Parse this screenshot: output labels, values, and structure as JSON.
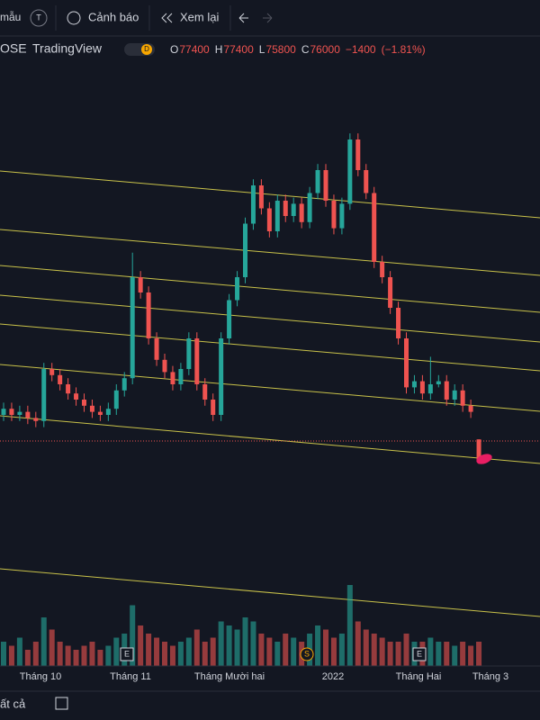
{
  "toolbar": {
    "templates": "mẫu",
    "avatar": "T",
    "alerts": "Cảnh báo",
    "replay": "Xem lại"
  },
  "legend": {
    "exchange": "OSE",
    "source": "TradingView",
    "interval": "D",
    "open_label": "O",
    "open": 77400,
    "high_label": "H",
    "high": 77400,
    "low_label": "L",
    "low": 75800,
    "close_label": "C",
    "close": 76000,
    "change": {
      "value": -1400,
      "label": "−1400"
    },
    "change_pct": {
      "value": -1.81,
      "label": "(−1.81%)"
    }
  },
  "chart_data": {
    "type": "candlestick",
    "up_color": "#26a69a",
    "down_color": "#ef5350",
    "ohlc": [
      [
        79000,
        79800,
        78600,
        79400
      ],
      [
        79400,
        79800,
        78600,
        79000
      ],
      [
        79000,
        79600,
        78600,
        79200
      ],
      [
        79200,
        79600,
        78400,
        78800
      ],
      [
        78800,
        79200,
        78200,
        78600
      ],
      [
        78600,
        82400,
        78200,
        82000
      ],
      [
        82000,
        82400,
        81200,
        81600
      ],
      [
        81600,
        82000,
        80600,
        81000
      ],
      [
        81000,
        81400,
        80000,
        80400
      ],
      [
        80400,
        80800,
        79600,
        80000
      ],
      [
        80000,
        80400,
        79200,
        79600
      ],
      [
        79600,
        80000,
        78800,
        79200
      ],
      [
        79200,
        79600,
        78600,
        79000
      ],
      [
        79000,
        79800,
        78600,
        79400
      ],
      [
        79400,
        81000,
        79000,
        80600
      ],
      [
        80600,
        81800,
        80200,
        81400
      ],
      [
        81400,
        89600,
        81000,
        88000
      ],
      [
        88000,
        88400,
        86600,
        87000
      ],
      [
        87000,
        87400,
        83600,
        84000
      ],
      [
        84000,
        84400,
        82200,
        82600
      ],
      [
        82600,
        83000,
        81400,
        81800
      ],
      [
        81800,
        82200,
        80600,
        81000
      ],
      [
        81000,
        82400,
        80600,
        82000
      ],
      [
        82000,
        84400,
        81600,
        84000
      ],
      [
        84000,
        84400,
        80600,
        81000
      ],
      [
        81000,
        81400,
        79600,
        80000
      ],
      [
        80000,
        80400,
        78600,
        79000
      ],
      [
        79000,
        84400,
        78600,
        84000
      ],
      [
        84000,
        86900,
        83600,
        86500
      ],
      [
        86500,
        88400,
        86100,
        88000
      ],
      [
        88000,
        91900,
        87600,
        91500
      ],
      [
        91500,
        94400,
        91100,
        94000
      ],
      [
        94000,
        94400,
        92100,
        92500
      ],
      [
        92500,
        92900,
        90600,
        91000
      ],
      [
        91000,
        93400,
        90600,
        93000
      ],
      [
        93000,
        93400,
        91600,
        92000
      ],
      [
        92000,
        93200,
        91600,
        92800
      ],
      [
        92800,
        93200,
        91200,
        91600
      ],
      [
        91600,
        93900,
        91200,
        93500
      ],
      [
        93500,
        95400,
        93100,
        95000
      ],
      [
        95000,
        95400,
        92600,
        93000
      ],
      [
        93000,
        93400,
        90800,
        91200
      ],
      [
        91200,
        93200,
        90800,
        92800
      ],
      [
        92800,
        97400,
        92400,
        97000
      ],
      [
        97000,
        97400,
        94600,
        95000
      ],
      [
        95000,
        95400,
        93100,
        93500
      ],
      [
        93500,
        93900,
        88600,
        89000
      ],
      [
        89000,
        89400,
        87600,
        88000
      ],
      [
        88000,
        88400,
        85600,
        86000
      ],
      [
        86000,
        86400,
        83600,
        84000
      ],
      [
        84000,
        84400,
        80400,
        80800
      ],
      [
        80800,
        81600,
        80400,
        81200
      ],
      [
        81200,
        81600,
        80000,
        80400
      ],
      [
        80400,
        82800,
        80000,
        81000
      ],
      [
        81000,
        81600,
        80800,
        81200
      ],
      [
        81200,
        81600,
        79600,
        80000
      ],
      [
        80000,
        81000,
        79600,
        80600
      ],
      [
        80600,
        81000,
        79200,
        79600
      ],
      [
        79600,
        80000,
        78800,
        79200
      ],
      [
        77400,
        77400,
        75800,
        76000
      ]
    ],
    "volume": [
      30,
      25,
      35,
      20,
      30,
      60,
      45,
      30,
      25,
      20,
      25,
      30,
      20,
      25,
      35,
      40,
      75,
      50,
      40,
      35,
      30,
      25,
      30,
      35,
      45,
      30,
      35,
      55,
      50,
      45,
      60,
      55,
      40,
      35,
      30,
      40,
      35,
      30,
      40,
      50,
      45,
      35,
      40,
      100,
      55,
      45,
      40,
      35,
      30,
      30,
      40,
      30,
      30,
      35,
      30,
      30,
      25,
      30,
      25,
      30
    ],
    "ylim": [
      72000,
      102000
    ],
    "x_labels": [
      "Tháng 10",
      "Tháng 11",
      "Tháng Mười hai",
      "2022",
      "Tháng Hai",
      "Tháng 3"
    ],
    "events": [
      "E",
      "S",
      "E"
    ]
  },
  "footer": {
    "tab": "ất cả"
  }
}
